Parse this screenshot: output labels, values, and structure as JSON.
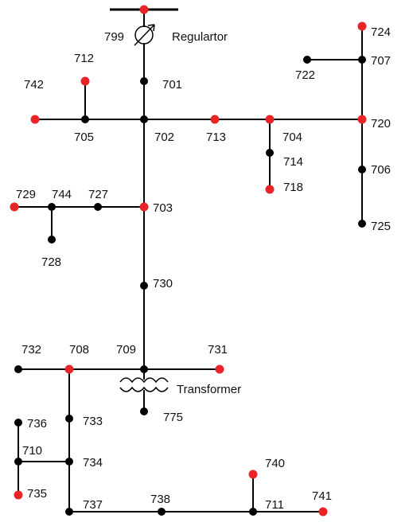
{
  "diagram": {
    "colors": {
      "line": "#000000",
      "node_black": "#000000",
      "node_red": "#e8262a",
      "text": "#111111"
    },
    "nodes": [
      {
        "id": "top",
        "label": "",
        "color": "red"
      },
      {
        "id": "799",
        "label": "799",
        "color": "none"
      },
      {
        "id": "701",
        "label": "701",
        "color": "black"
      },
      {
        "id": "702",
        "label": "702",
        "color": "black"
      },
      {
        "id": "705",
        "label": "705",
        "color": "black"
      },
      {
        "id": "712",
        "label": "712",
        "color": "red"
      },
      {
        "id": "742",
        "label": "742",
        "color": "red"
      },
      {
        "id": "713",
        "label": "713",
        "color": "red"
      },
      {
        "id": "704",
        "label": "704",
        "color": "red"
      },
      {
        "id": "714",
        "label": "714",
        "color": "black"
      },
      {
        "id": "718",
        "label": "718",
        "color": "red"
      },
      {
        "id": "720",
        "label": "720",
        "color": "red"
      },
      {
        "id": "707",
        "label": "707",
        "color": "black"
      },
      {
        "id": "722",
        "label": "722",
        "color": "black"
      },
      {
        "id": "724",
        "label": "724",
        "color": "red"
      },
      {
        "id": "706",
        "label": "706",
        "color": "black"
      },
      {
        "id": "725",
        "label": "725",
        "color": "black"
      },
      {
        "id": "703",
        "label": "703",
        "color": "red"
      },
      {
        "id": "727",
        "label": "727",
        "color": "black"
      },
      {
        "id": "744",
        "label": "744",
        "color": "black"
      },
      {
        "id": "729",
        "label": "729",
        "color": "red"
      },
      {
        "id": "728",
        "label": "728",
        "color": "black"
      },
      {
        "id": "730",
        "label": "730",
        "color": "black"
      },
      {
        "id": "709",
        "label": "709",
        "color": "black"
      },
      {
        "id": "708",
        "label": "708",
        "color": "red"
      },
      {
        "id": "732",
        "label": "732",
        "color": "black"
      },
      {
        "id": "731",
        "label": "731",
        "color": "red"
      },
      {
        "id": "775",
        "label": "775",
        "color": "black"
      },
      {
        "id": "733",
        "label": "733",
        "color": "black"
      },
      {
        "id": "734",
        "label": "734",
        "color": "black"
      },
      {
        "id": "710",
        "label": "710",
        "color": "black"
      },
      {
        "id": "736",
        "label": "736",
        "color": "black"
      },
      {
        "id": "735",
        "label": "735",
        "color": "red"
      },
      {
        "id": "737",
        "label": "737",
        "color": "black"
      },
      {
        "id": "738",
        "label": "738",
        "color": "black"
      },
      {
        "id": "711",
        "label": "711",
        "color": "black"
      },
      {
        "id": "740",
        "label": "740",
        "color": "red"
      },
      {
        "id": "741",
        "label": "741",
        "color": "red"
      }
    ],
    "edges": [
      [
        "top",
        "799"
      ],
      [
        "799",
        "701"
      ],
      [
        "701",
        "702"
      ],
      [
        "742",
        "705"
      ],
      [
        "705",
        "702"
      ],
      [
        "705",
        "712"
      ],
      [
        "702",
        "713"
      ],
      [
        "713",
        "704"
      ],
      [
        "704",
        "720"
      ],
      [
        "704",
        "714"
      ],
      [
        "714",
        "718"
      ],
      [
        "720",
        "707"
      ],
      [
        "707",
        "724"
      ],
      [
        "707",
        "722"
      ],
      [
        "720",
        "706"
      ],
      [
        "706",
        "725"
      ],
      [
        "702",
        "703"
      ],
      [
        "703",
        "727"
      ],
      [
        "727",
        "744"
      ],
      [
        "744",
        "729"
      ],
      [
        "744",
        "728"
      ],
      [
        "703",
        "730"
      ],
      [
        "730",
        "709"
      ],
      [
        "709",
        "708"
      ],
      [
        "708",
        "732"
      ],
      [
        "709",
        "731"
      ],
      [
        "709",
        "775"
      ],
      [
        "708",
        "733"
      ],
      [
        "733",
        "734"
      ],
      [
        "734",
        "710"
      ],
      [
        "710",
        "736"
      ],
      [
        "710",
        "735"
      ],
      [
        "734",
        "737"
      ],
      [
        "737",
        "738"
      ],
      [
        "738",
        "711"
      ],
      [
        "711",
        "741"
      ],
      [
        "711",
        "740"
      ]
    ],
    "annotations": {
      "regulator_label": "Regulartor",
      "transformer_label": "Transformer"
    }
  }
}
